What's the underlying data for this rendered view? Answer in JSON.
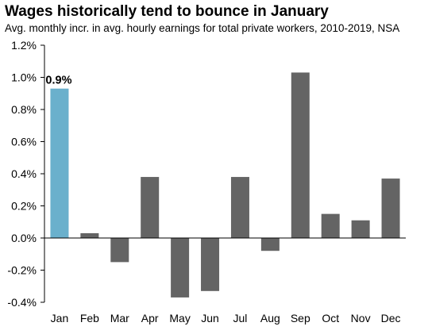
{
  "chart_data": {
    "type": "bar",
    "title": "Wages historically tend to bounce in January",
    "subtitle": "Avg. monthly incr. in avg. hourly earnings for total private workers, 2010-2019, NSA",
    "categories": [
      "Jan",
      "Feb",
      "Mar",
      "Apr",
      "May",
      "Jun",
      "Jul",
      "Aug",
      "Sep",
      "Oct",
      "Nov",
      "Dec"
    ],
    "values": [
      0.93,
      0.03,
      -0.15,
      0.38,
      -0.37,
      -0.33,
      0.38,
      -0.08,
      1.03,
      0.15,
      0.11,
      0.37
    ],
    "ylim": [
      -0.4,
      1.2
    ],
    "yticks": [
      -0.4,
      -0.2,
      0.0,
      0.2,
      0.4,
      0.6,
      0.8,
      1.0,
      1.2
    ],
    "ytick_labels": [
      "-0.4%",
      "-0.2%",
      "0.0%",
      "0.2%",
      "0.4%",
      "0.6%",
      "0.8%",
      "1.0%",
      "1.2%"
    ],
    "data_labels": [
      {
        "category": "Jan",
        "text": "0.9%"
      }
    ],
    "grid": false,
    "colors": {
      "highlight": "#6ab0cc",
      "default": "#646464"
    },
    "highlight_category": "Jan"
  }
}
